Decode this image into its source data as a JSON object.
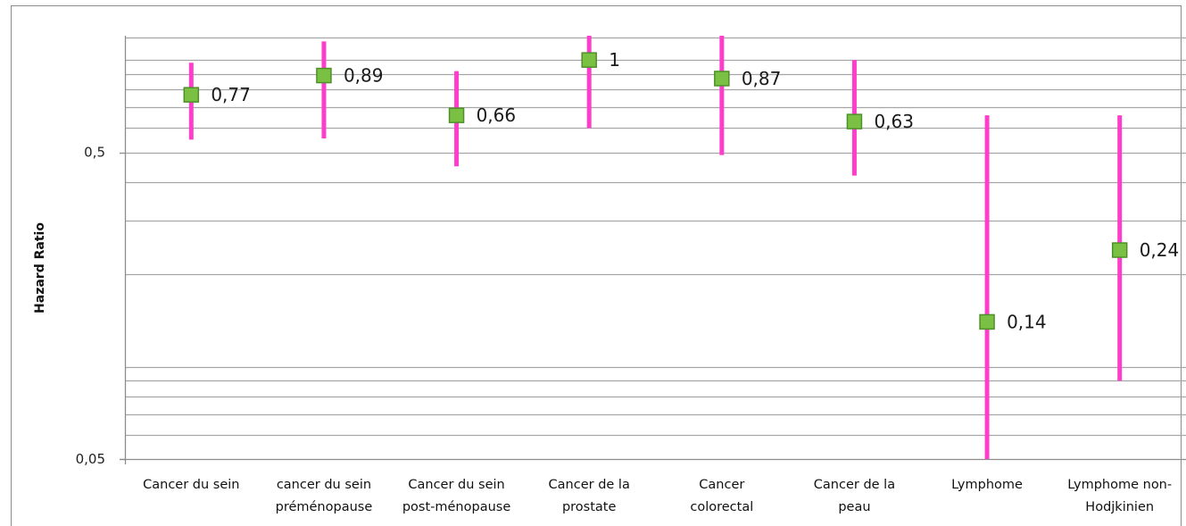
{
  "chart_data": {
    "type": "scatter",
    "title": "",
    "xlabel": "",
    "ylabel": "Hazard Ratio",
    "yscale": "log",
    "ylim": [
      0.05,
      1.2
    ],
    "yticks": [
      {
        "value": 0.05,
        "label": "0,05"
      },
      {
        "value": 0.5,
        "label": "0,5"
      }
    ],
    "grid": true,
    "legend": "none",
    "categories": [
      [
        "Cancer du sein"
      ],
      [
        "cancer du sein",
        "préménopause"
      ],
      [
        "Cancer du sein",
        "post-ménopause"
      ],
      [
        "Cancer de la",
        "prostate"
      ],
      [
        "Cancer",
        "colorectal"
      ],
      [
        "Cancer de la",
        "peau"
      ],
      [
        "Lymphome"
      ],
      [
        "Lymphome non-",
        "Hodjkinien"
      ]
    ],
    "values": [
      0.77,
      0.89,
      0.66,
      1.0,
      0.87,
      0.63,
      0.14,
      0.24
    ],
    "value_labels": [
      "0,77",
      "0,89",
      "0,66",
      "1",
      "0,87",
      "0,63",
      "0,14",
      "0,24"
    ],
    "ci_low": [
      0.55,
      0.555,
      0.45,
      0.6,
      0.49,
      0.42,
      0.05,
      0.09
    ],
    "ci_high": [
      0.98,
      1.15,
      0.92,
      1.2,
      1.2,
      1.0,
      0.66,
      0.66
    ],
    "colors": {
      "marker_fill": "#7ac143",
      "marker_stroke": "#4f8f2a",
      "error_bar": "#ff3dcb",
      "grid": "#a6a6a6",
      "axis": "#8c8c8c"
    }
  }
}
